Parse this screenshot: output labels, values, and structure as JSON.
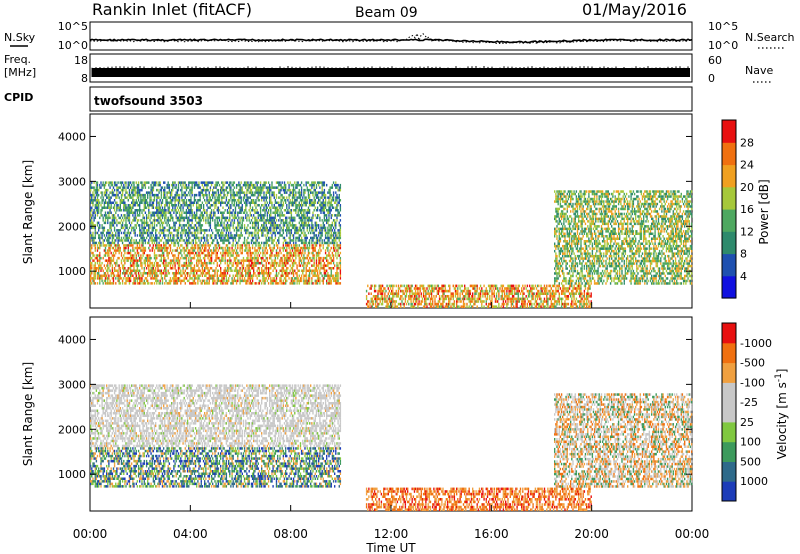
{
  "header": {
    "station": "Rankin Inlet (fitACF)",
    "beam": "Beam 09",
    "date": "01/May/2016"
  },
  "sky_panel": {
    "left_label": "N.Sky",
    "right_label": "N.Search",
    "left_ticks": [
      "10^5",
      "10^0"
    ],
    "right_ticks": [
      "10^5",
      "10^0"
    ]
  },
  "freq_panel": {
    "left_label_1": "Freq.",
    "left_label_2": "[MHz]",
    "right_label": "Nave",
    "left_ticks": [
      "18",
      "8"
    ],
    "right_ticks": [
      "60",
      "0"
    ]
  },
  "cpid": {
    "label": "CPID",
    "value": "twofsound 3503"
  },
  "chart_data": [
    {
      "type": "heatmap",
      "quantity": "Power",
      "ylabel": "Slant Range [km]",
      "ylim": [
        180,
        4500
      ],
      "yticks": [
        "1000",
        "2000",
        "3000",
        "4000"
      ],
      "colorbar_label": "Power [dB]",
      "colorbar_ticks": [
        "4",
        "8",
        "12",
        "16",
        "20",
        "24",
        "28"
      ],
      "colorbar_colors": [
        "#1010e0",
        "#1e50b0",
        "#2e8a6c",
        "#4ea860",
        "#a6c83a",
        "#f0a020",
        "#f07010",
        "#e81010"
      ],
      "bands": [
        {
          "name": "upper-echo",
          "t": [
            0,
            10
          ],
          "range": [
            1600,
            3000
          ],
          "level": "low-mid"
        },
        {
          "name": "lower-echo",
          "t": [
            0,
            10
          ],
          "range": [
            700,
            1600
          ],
          "level": "high"
        },
        {
          "name": "afternoon-near",
          "t": [
            11,
            20
          ],
          "range": [
            180,
            700
          ],
          "level": "high"
        },
        {
          "name": "evening-upper",
          "t": [
            18.5,
            24
          ],
          "range": [
            700,
            2800
          ],
          "level": "mid"
        }
      ]
    },
    {
      "type": "heatmap",
      "quantity": "Velocity",
      "ylabel": "Slant Range [km]",
      "ylim": [
        180,
        4500
      ],
      "yticks": [
        "1000",
        "2000",
        "3000",
        "4000"
      ],
      "colorbar_label": "Velocity [m s^-1]",
      "colorbar_ticks": [
        "1000",
        "500",
        "100",
        "25",
        "-25",
        "-100",
        "-500",
        "-1000"
      ],
      "colorbar_colors": [
        "#1c3cb8",
        "#2e6a8a",
        "#3c9a5c",
        "#80c840",
        "#c8c8c8",
        "#c8c8c8",
        "#f0a040",
        "#f07010",
        "#e81010"
      ],
      "bands": [
        {
          "name": "ground-scatter",
          "t": [
            0,
            10
          ],
          "range": [
            1600,
            3000
          ],
          "class": "near-zero"
        },
        {
          "name": "positive-echo",
          "t": [
            0,
            10
          ],
          "range": [
            700,
            1600
          ],
          "class": "positive"
        },
        {
          "name": "negative-echo",
          "t": [
            11,
            20
          ],
          "range": [
            180,
            700
          ],
          "class": "negative"
        },
        {
          "name": "evening-mixed",
          "t": [
            18.5,
            24
          ],
          "range": [
            700,
            2800
          ],
          "class": "mixed"
        }
      ]
    }
  ],
  "x_axis": {
    "label": "Time UT",
    "ticks": [
      "00:00",
      "04:00",
      "08:00",
      "12:00",
      "16:00",
      "20:00",
      "00:00"
    ]
  }
}
